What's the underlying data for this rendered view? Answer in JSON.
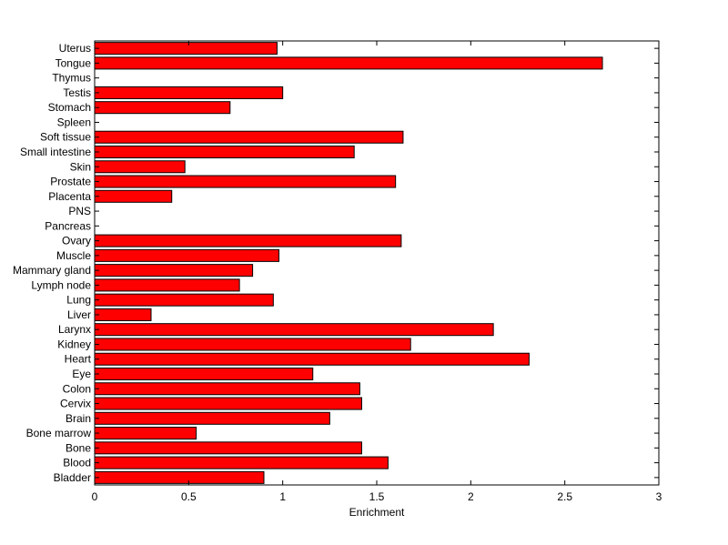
{
  "chart_data": {
    "type": "bar",
    "orientation": "horizontal",
    "title": "",
    "xlabel": "Enrichment",
    "ylabel": "",
    "xlim": [
      0,
      3
    ],
    "xticks": [
      0,
      0.5,
      1,
      1.5,
      2,
      2.5,
      3
    ],
    "xtick_labels": [
      "0",
      "0.5",
      "1",
      "1.5",
      "2",
      "2.5",
      "3"
    ],
    "grid": false,
    "legend": "none",
    "bar_color": "#ff0000",
    "bar_edge_color": "#000000",
    "categories": [
      "Bladder",
      "Blood",
      "Bone",
      "Bone marrow",
      "Brain",
      "Cervix",
      "Colon",
      "Eye",
      "Heart",
      "Kidney",
      "Larynx",
      "Liver",
      "Lung",
      "Lymph node",
      "Mammary gland",
      "Muscle",
      "Ovary",
      "Pancreas",
      "PNS",
      "Placenta",
      "Prostate",
      "Skin",
      "Small intestine",
      "Soft tissue",
      "Spleen",
      "Stomach",
      "Testis",
      "Thymus",
      "Tongue",
      "Uterus"
    ],
    "values": [
      0.9,
      1.56,
      1.42,
      0.54,
      1.25,
      1.42,
      1.41,
      1.16,
      2.31,
      1.68,
      2.12,
      0.3,
      0.95,
      0.77,
      0.84,
      0.98,
      1.63,
      0,
      0,
      0.41,
      1.6,
      0.48,
      1.38,
      1.64,
      0,
      0.72,
      1.0,
      0,
      2.7,
      0.97
    ]
  }
}
